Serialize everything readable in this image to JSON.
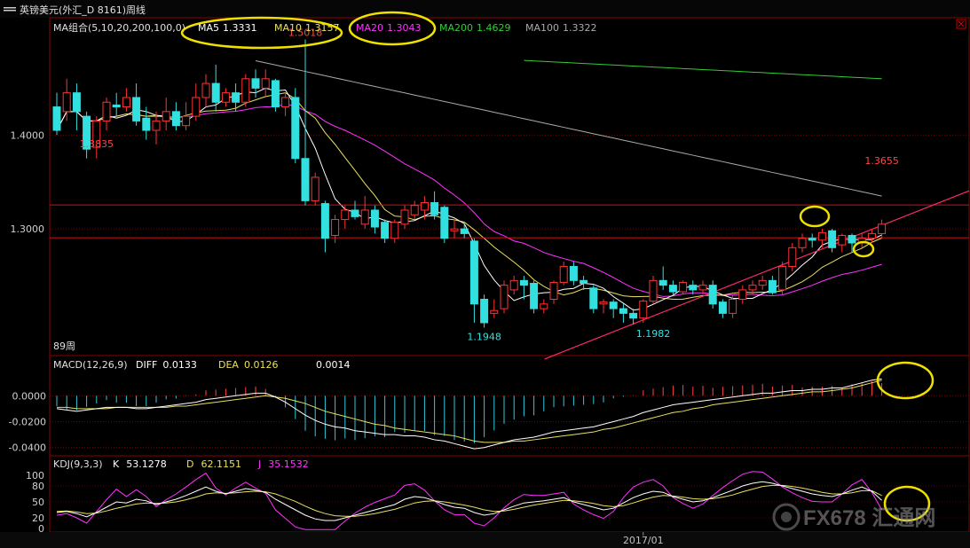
{
  "window": {
    "title": "英镑美元(外汇_D 8161)周线",
    "menu_icon": "menu-bars-icon",
    "close_icon": "close-x-icon"
  },
  "watermark": "FX678 汇通网",
  "chart_data": [
    {
      "type": "candlestick",
      "title": "MA组合(5,10,20,200,100,0)",
      "period_label": "89周",
      "ylim": [
        1.165,
        1.525
      ],
      "yticks": [
        1.3,
        1.4
      ],
      "ytick_labels": [
        "1.3000",
        "1.4000"
      ],
      "ma_legend": [
        {
          "name": "MA5",
          "value": "1.3331",
          "color": "#ffffff"
        },
        {
          "name": "MA10",
          "value": "1.3157",
          "color": "#e8e060"
        },
        {
          "name": "MA20",
          "value": "1.3043",
          "color": "#ff33ff"
        },
        {
          "name": "MA200",
          "value": "1.4629",
          "color": "#33cc33"
        },
        {
          "name": "MA100",
          "value": "1.3322",
          "color": "#aaaaaa"
        }
      ],
      "annotations": [
        {
          "text": "1.5018",
          "value": 1.5018,
          "bar": 25
        },
        {
          "text": "1.3835",
          "value": 1.3835,
          "bar": 4
        },
        {
          "text": "1.1948",
          "value": 1.1948,
          "bar": 43
        },
        {
          "text": "1.1982",
          "value": 1.1982,
          "bar": 60
        },
        {
          "text": "1.3655",
          "value": 1.3655,
          "bar": 83
        }
      ],
      "horizontal_lines": [
        1.3255,
        1.2905
      ],
      "trendline": {
        "from": [
          53,
          1.167
        ],
        "to": [
          87,
          1.317
        ]
      },
      "candles": [
        [
          1.43,
          1.405,
          1.445,
          1.4
        ],
        [
          1.425,
          1.445,
          1.46,
          1.415
        ],
        [
          1.445,
          1.425,
          1.455,
          1.405
        ],
        [
          1.42,
          1.385,
          1.425,
          1.375
        ],
        [
          1.387,
          1.415,
          1.42,
          1.375
        ],
        [
          1.415,
          1.435,
          1.44,
          1.405
        ],
        [
          1.432,
          1.43,
          1.445,
          1.42
        ],
        [
          1.43,
          1.44,
          1.45,
          1.425
        ],
        [
          1.44,
          1.415,
          1.455,
          1.41
        ],
        [
          1.418,
          1.405,
          1.43,
          1.395
        ],
        [
          1.405,
          1.415,
          1.425,
          1.39
        ],
        [
          1.415,
          1.425,
          1.44,
          1.405
        ],
        [
          1.425,
          1.41,
          1.435,
          1.405
        ],
        [
          1.41,
          1.42,
          1.435,
          1.405
        ],
        [
          1.42,
          1.44,
          1.455,
          1.415
        ],
        [
          1.44,
          1.455,
          1.465,
          1.43
        ],
        [
          1.455,
          1.435,
          1.475,
          1.425
        ],
        [
          1.435,
          1.445,
          1.45,
          1.43
        ],
        [
          1.445,
          1.435,
          1.455,
          1.425
        ],
        [
          1.435,
          1.46,
          1.465,
          1.43
        ],
        [
          1.46,
          1.45,
          1.47,
          1.44
        ],
        [
          1.45,
          1.46,
          1.47,
          1.44
        ],
        [
          1.458,
          1.43,
          1.46,
          1.425
        ],
        [
          1.43,
          1.44,
          1.445,
          1.42
        ],
        [
          1.44,
          1.375,
          1.45,
          1.37
        ],
        [
          1.375,
          1.33,
          1.5018,
          1.325
        ],
        [
          1.33,
          1.355,
          1.36,
          1.325
        ],
        [
          1.327,
          1.29,
          1.33,
          1.275
        ],
        [
          1.293,
          1.31,
          1.315,
          1.285
        ],
        [
          1.31,
          1.32,
          1.325,
          1.3
        ],
        [
          1.32,
          1.313,
          1.33,
          1.31
        ],
        [
          1.305,
          1.32,
          1.335,
          1.3
        ],
        [
          1.32,
          1.302,
          1.325,
          1.295
        ],
        [
          1.307,
          1.29,
          1.31,
          1.285
        ],
        [
          1.29,
          1.307,
          1.31,
          1.285
        ],
        [
          1.305,
          1.32,
          1.325,
          1.3
        ],
        [
          1.315,
          1.325,
          1.33,
          1.31
        ],
        [
          1.32,
          1.328,
          1.335,
          1.31
        ],
        [
          1.328,
          1.315,
          1.34,
          1.31
        ],
        [
          1.323,
          1.29,
          1.325,
          1.285
        ],
        [
          1.298,
          1.3,
          1.31,
          1.29
        ],
        [
          1.3,
          1.295,
          1.305,
          1.29
        ],
        [
          1.287,
          1.22,
          1.29,
          1.2
        ],
        [
          1.225,
          1.2,
          1.23,
          1.1948
        ],
        [
          1.21,
          1.213,
          1.225,
          1.205
        ],
        [
          1.215,
          1.24,
          1.245,
          1.21
        ],
        [
          1.235,
          1.245,
          1.25,
          1.23
        ],
        [
          1.245,
          1.24,
          1.25,
          1.225
        ],
        [
          1.242,
          1.215,
          1.245,
          1.21
        ],
        [
          1.215,
          1.22,
          1.225,
          1.21
        ],
        [
          1.225,
          1.243,
          1.245,
          1.22
        ],
        [
          1.243,
          1.26,
          1.265,
          1.24
        ],
        [
          1.26,
          1.245,
          1.265,
          1.24
        ],
        [
          1.245,
          1.242,
          1.25,
          1.235
        ],
        [
          1.237,
          1.215,
          1.24,
          1.21
        ],
        [
          1.22,
          1.222,
          1.225,
          1.21
        ],
        [
          1.222,
          1.215,
          1.225,
          1.205
        ],
        [
          1.215,
          1.21,
          1.22,
          1.2
        ],
        [
          1.21,
          1.205,
          1.215,
          1.1982
        ],
        [
          1.205,
          1.223,
          1.225,
          1.2
        ],
        [
          1.223,
          1.245,
          1.25,
          1.22
        ],
        [
          1.245,
          1.24,
          1.26,
          1.235
        ],
        [
          1.24,
          1.233,
          1.245,
          1.23
        ],
        [
          1.233,
          1.243,
          1.245,
          1.23
        ],
        [
          1.24,
          1.235,
          1.245,
          1.23
        ],
        [
          1.235,
          1.24,
          1.245,
          1.23
        ],
        [
          1.24,
          1.22,
          1.245,
          1.215
        ],
        [
          1.222,
          1.21,
          1.225,
          1.205
        ],
        [
          1.21,
          1.225,
          1.23,
          1.205
        ],
        [
          1.225,
          1.235,
          1.24,
          1.22
        ],
        [
          1.235,
          1.24,
          1.245,
          1.23
        ],
        [
          1.24,
          1.245,
          1.25,
          1.235
        ],
        [
          1.245,
          1.232,
          1.25,
          1.23
        ],
        [
          1.235,
          1.26,
          1.265,
          1.23
        ],
        [
          1.26,
          1.28,
          1.285,
          1.255
        ],
        [
          1.28,
          1.29,
          1.295,
          1.275
        ],
        [
          1.29,
          1.288,
          1.295,
          1.28
        ],
        [
          1.288,
          1.296,
          1.3,
          1.28
        ],
        [
          1.298,
          1.28,
          1.3,
          1.275
        ],
        [
          1.283,
          1.293,
          1.295,
          1.275
        ],
        [
          1.293,
          1.285,
          1.295,
          1.275
        ],
        [
          1.285,
          1.29,
          1.295,
          1.28
        ],
        [
          1.29,
          1.295,
          1.3,
          1.285
        ],
        [
          1.295,
          1.305,
          1.31,
          1.29
        ]
      ]
    },
    {
      "type": "macd",
      "title": "MACD(12,26,9)",
      "legend": [
        {
          "name": "DIFF",
          "value": "0.0133",
          "color": "#ffffff"
        },
        {
          "name": "DEA",
          "value": "0.0126",
          "color": "#e8e060"
        },
        {
          "name": "",
          "value": "0.0014",
          "color": "#ffffff"
        }
      ],
      "ylim": [
        -0.045,
        0.018
      ],
      "yticks": [
        0,
        -0.02,
        -0.04
      ],
      "ytick_labels": [
        "0.0000",
        "-0.0200",
        "-0.0400"
      ],
      "diff": [
        -0.01,
        -0.011,
        -0.012,
        -0.011,
        -0.01,
        -0.009,
        -0.009,
        -0.009,
        -0.01,
        -0.01,
        -0.009,
        -0.008,
        -0.007,
        -0.006,
        -0.005,
        -0.003,
        -0.002,
        -0.001,
        0.0,
        0.001,
        0.002,
        0.002,
        -0.001,
        -0.005,
        -0.01,
        -0.015,
        -0.019,
        -0.022,
        -0.024,
        -0.025,
        -0.027,
        -0.028,
        -0.029,
        -0.03,
        -0.03,
        -0.031,
        -0.031,
        -0.032,
        -0.034,
        -0.035,
        -0.037,
        -0.039,
        -0.041,
        -0.04,
        -0.038,
        -0.036,
        -0.034,
        -0.033,
        -0.032,
        -0.03,
        -0.028,
        -0.027,
        -0.026,
        -0.025,
        -0.024,
        -0.022,
        -0.02,
        -0.018,
        -0.016,
        -0.013,
        -0.011,
        -0.009,
        -0.007,
        -0.006,
        -0.005,
        -0.004,
        -0.003,
        -0.002,
        -0.001,
        0.0,
        0.001,
        0.002,
        0.002,
        0.003,
        0.004,
        0.004,
        0.005,
        0.005,
        0.006,
        0.006,
        0.008,
        0.01,
        0.012,
        0.013
      ],
      "dea": [
        -0.009,
        -0.009,
        -0.01,
        -0.01,
        -0.01,
        -0.01,
        -0.009,
        -0.009,
        -0.009,
        -0.009,
        -0.009,
        -0.009,
        -0.008,
        -0.008,
        -0.007,
        -0.006,
        -0.005,
        -0.004,
        -0.003,
        -0.002,
        -0.001,
        0.0,
        -0.001,
        -0.002,
        -0.004,
        -0.006,
        -0.009,
        -0.012,
        -0.014,
        -0.016,
        -0.018,
        -0.02,
        -0.022,
        -0.023,
        -0.025,
        -0.026,
        -0.027,
        -0.028,
        -0.029,
        -0.03,
        -0.031,
        -0.033,
        -0.035,
        -0.036,
        -0.036,
        -0.036,
        -0.035,
        -0.035,
        -0.034,
        -0.033,
        -0.032,
        -0.031,
        -0.03,
        -0.029,
        -0.028,
        -0.026,
        -0.025,
        -0.023,
        -0.021,
        -0.019,
        -0.017,
        -0.015,
        -0.013,
        -0.012,
        -0.01,
        -0.009,
        -0.007,
        -0.006,
        -0.005,
        -0.004,
        -0.003,
        -0.002,
        -0.001,
        0.0,
        0.001,
        0.002,
        0.003,
        0.003,
        0.004,
        0.005,
        0.006,
        0.008,
        0.01,
        0.012
      ]
    },
    {
      "type": "kdj",
      "title": "KDJ(9,3,3)",
      "legend": [
        {
          "name": "K",
          "value": "53.1278",
          "color": "#ffffff"
        },
        {
          "name": "D",
          "value": "62.1151",
          "color": "#e8e060"
        },
        {
          "name": "J",
          "value": "35.1532",
          "color": "#ff33ff"
        }
      ],
      "ylim": [
        -5,
        110
      ],
      "yticks": [
        0,
        20,
        50,
        80,
        100
      ],
      "ytick_labels": [
        "0",
        "20",
        "50",
        "80",
        "100"
      ],
      "x_labels": [
        {
          "text": "2017/01",
          "bar": 59
        }
      ],
      "k": [
        30,
        32,
        28,
        22,
        30,
        40,
        50,
        48,
        55,
        52,
        45,
        50,
        55,
        62,
        70,
        78,
        70,
        65,
        70,
        75,
        72,
        68,
        55,
        45,
        35,
        25,
        18,
        15,
        15,
        20,
        25,
        30,
        35,
        40,
        45,
        55,
        60,
        58,
        52,
        45,
        40,
        38,
        30,
        25,
        28,
        35,
        42,
        48,
        50,
        52,
        55,
        58,
        50,
        45,
        40,
        35,
        38,
        48,
        58,
        65,
        70,
        68,
        60,
        55,
        50,
        52,
        58,
        65,
        72,
        80,
        85,
        88,
        85,
        80,
        75,
        70,
        65,
        62,
        60,
        65,
        72,
        78,
        70,
        53
      ],
      "d": [
        32,
        33,
        31,
        28,
        29,
        33,
        38,
        42,
        46,
        48,
        47,
        48,
        50,
        54,
        59,
        65,
        67,
        66,
        67,
        69,
        70,
        69,
        65,
        58,
        51,
        42,
        34,
        28,
        24,
        23,
        23,
        25,
        28,
        32,
        36,
        42,
        48,
        51,
        52,
        50,
        47,
        44,
        40,
        35,
        32,
        33,
        36,
        40,
        44,
        47,
        50,
        53,
        52,
        50,
        47,
        43,
        41,
        43,
        48,
        54,
        59,
        62,
        61,
        59,
        56,
        55,
        56,
        59,
        63,
        69,
        74,
        79,
        81,
        81,
        79,
        76,
        72,
        68,
        65,
        65,
        67,
        71,
        71,
        62
      ],
      "j": [
        25,
        28,
        20,
        10,
        32,
        54,
        74,
        60,
        73,
        60,
        41,
        54,
        65,
        78,
        92,
        104,
        76,
        63,
        76,
        87,
        76,
        66,
        35,
        19,
        3,
        -2,
        -2,
        -2,
        -2,
        14,
        29,
        40,
        49,
        56,
        63,
        81,
        84,
        72,
        52,
        35,
        26,
        26,
        10,
        5,
        20,
        39,
        54,
        64,
        62,
        62,
        65,
        68,
        46,
        35,
        26,
        19,
        32,
        58,
        78,
        87,
        92,
        80,
        58,
        47,
        38,
        46,
        62,
        77,
        90,
        102,
        107,
        106,
        93,
        78,
        67,
        58,
        51,
        50,
        50,
        65,
        82,
        92,
        68,
        35
      ]
    }
  ]
}
